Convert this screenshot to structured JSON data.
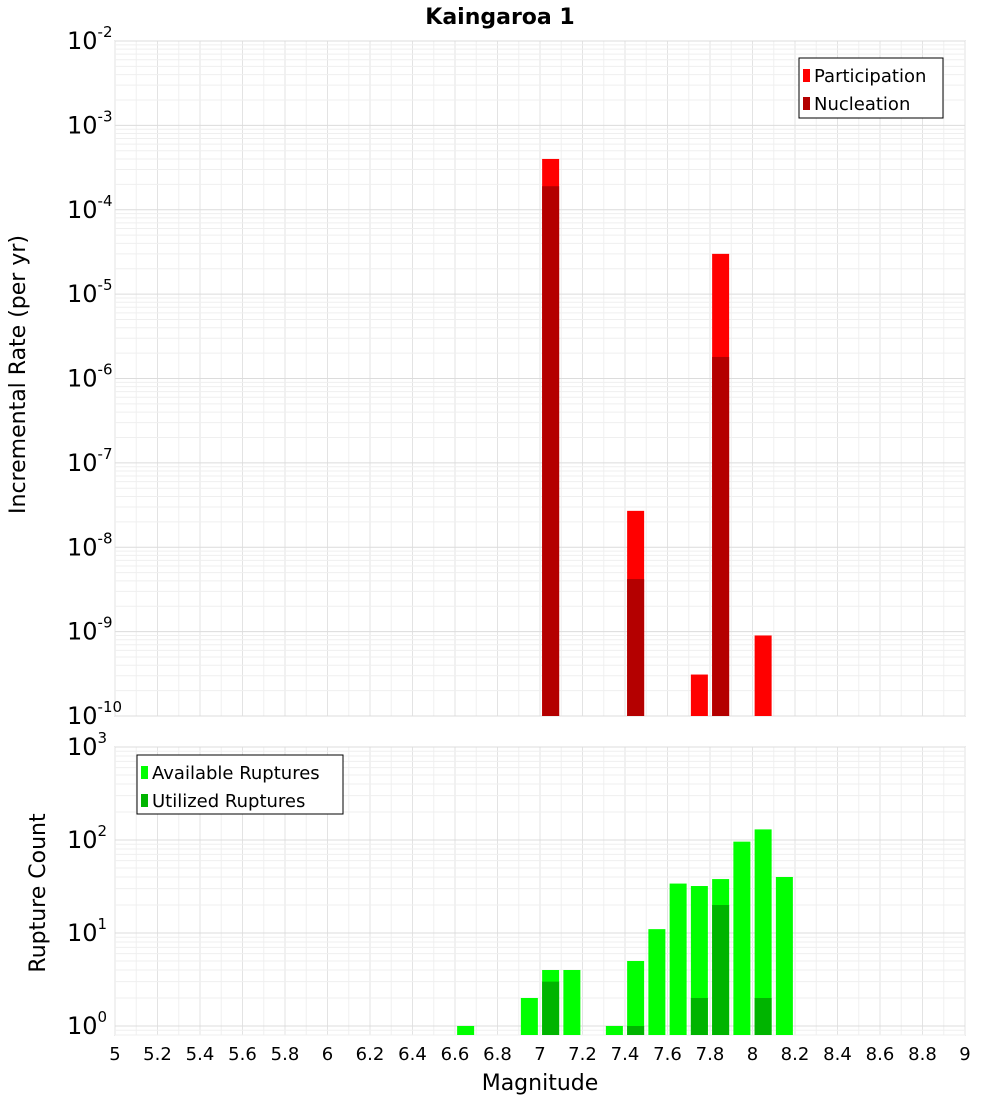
{
  "chart_data": [
    {
      "type": "bar",
      "title": "Kaingaroa 1",
      "xlabel": "Magnitude",
      "ylabel": "Incremental Rate (per yr)",
      "yscale": "log",
      "ylim": [
        1e-10,
        0.01
      ],
      "xlim": [
        5,
        9
      ],
      "grid": true,
      "legend_position": "top-right",
      "y_tick_exponents": [
        -10,
        -9,
        -8,
        -7,
        -6,
        -5,
        -4,
        -3,
        -2
      ],
      "series": [
        {
          "name": "Participation",
          "color": "#ff0000",
          "x": [
            7.05,
            7.45,
            7.75,
            7.85,
            8.05
          ],
          "values": [
            0.0004,
            2.7e-08,
            3.1e-10,
            3e-05,
            9e-10
          ]
        },
        {
          "name": "Nucleation",
          "color": "#b40000",
          "x": [
            7.05,
            7.45,
            7.85
          ],
          "values": [
            0.00019,
            4.2e-09,
            1.8e-06
          ]
        }
      ]
    },
    {
      "type": "bar",
      "xlabel": "Magnitude",
      "ylabel": "Rupture Count",
      "yscale": "log",
      "ylim": [
        0.8,
        1000
      ],
      "xlim": [
        5,
        9
      ],
      "grid": true,
      "legend_position": "top-left",
      "y_tick_exponents": [
        0,
        1,
        2,
        3
      ],
      "x_ticks": [
        "5",
        "5.2",
        "5.4",
        "5.6",
        "5.8",
        "6",
        "6.2",
        "6.4",
        "6.6",
        "6.8",
        "7",
        "7.2",
        "7.4",
        "7.6",
        "7.8",
        "8",
        "8.2",
        "8.4",
        "8.6",
        "8.8",
        "9"
      ],
      "series": [
        {
          "name": "Available Ruptures",
          "color": "#00ff00",
          "x": [
            6.65,
            6.95,
            7.05,
            7.15,
            7.35,
            7.45,
            7.55,
            7.65,
            7.75,
            7.85,
            7.95,
            8.05,
            8.15
          ],
          "values": [
            1,
            2,
            4,
            4,
            1,
            5,
            11,
            34,
            32,
            38,
            96,
            130,
            40
          ]
        },
        {
          "name": "Utilized Ruptures",
          "color": "#00b400",
          "x": [
            7.05,
            7.45,
            7.75,
            7.85,
            8.05
          ],
          "values": [
            3,
            1,
            2,
            20,
            2
          ]
        }
      ]
    }
  ]
}
